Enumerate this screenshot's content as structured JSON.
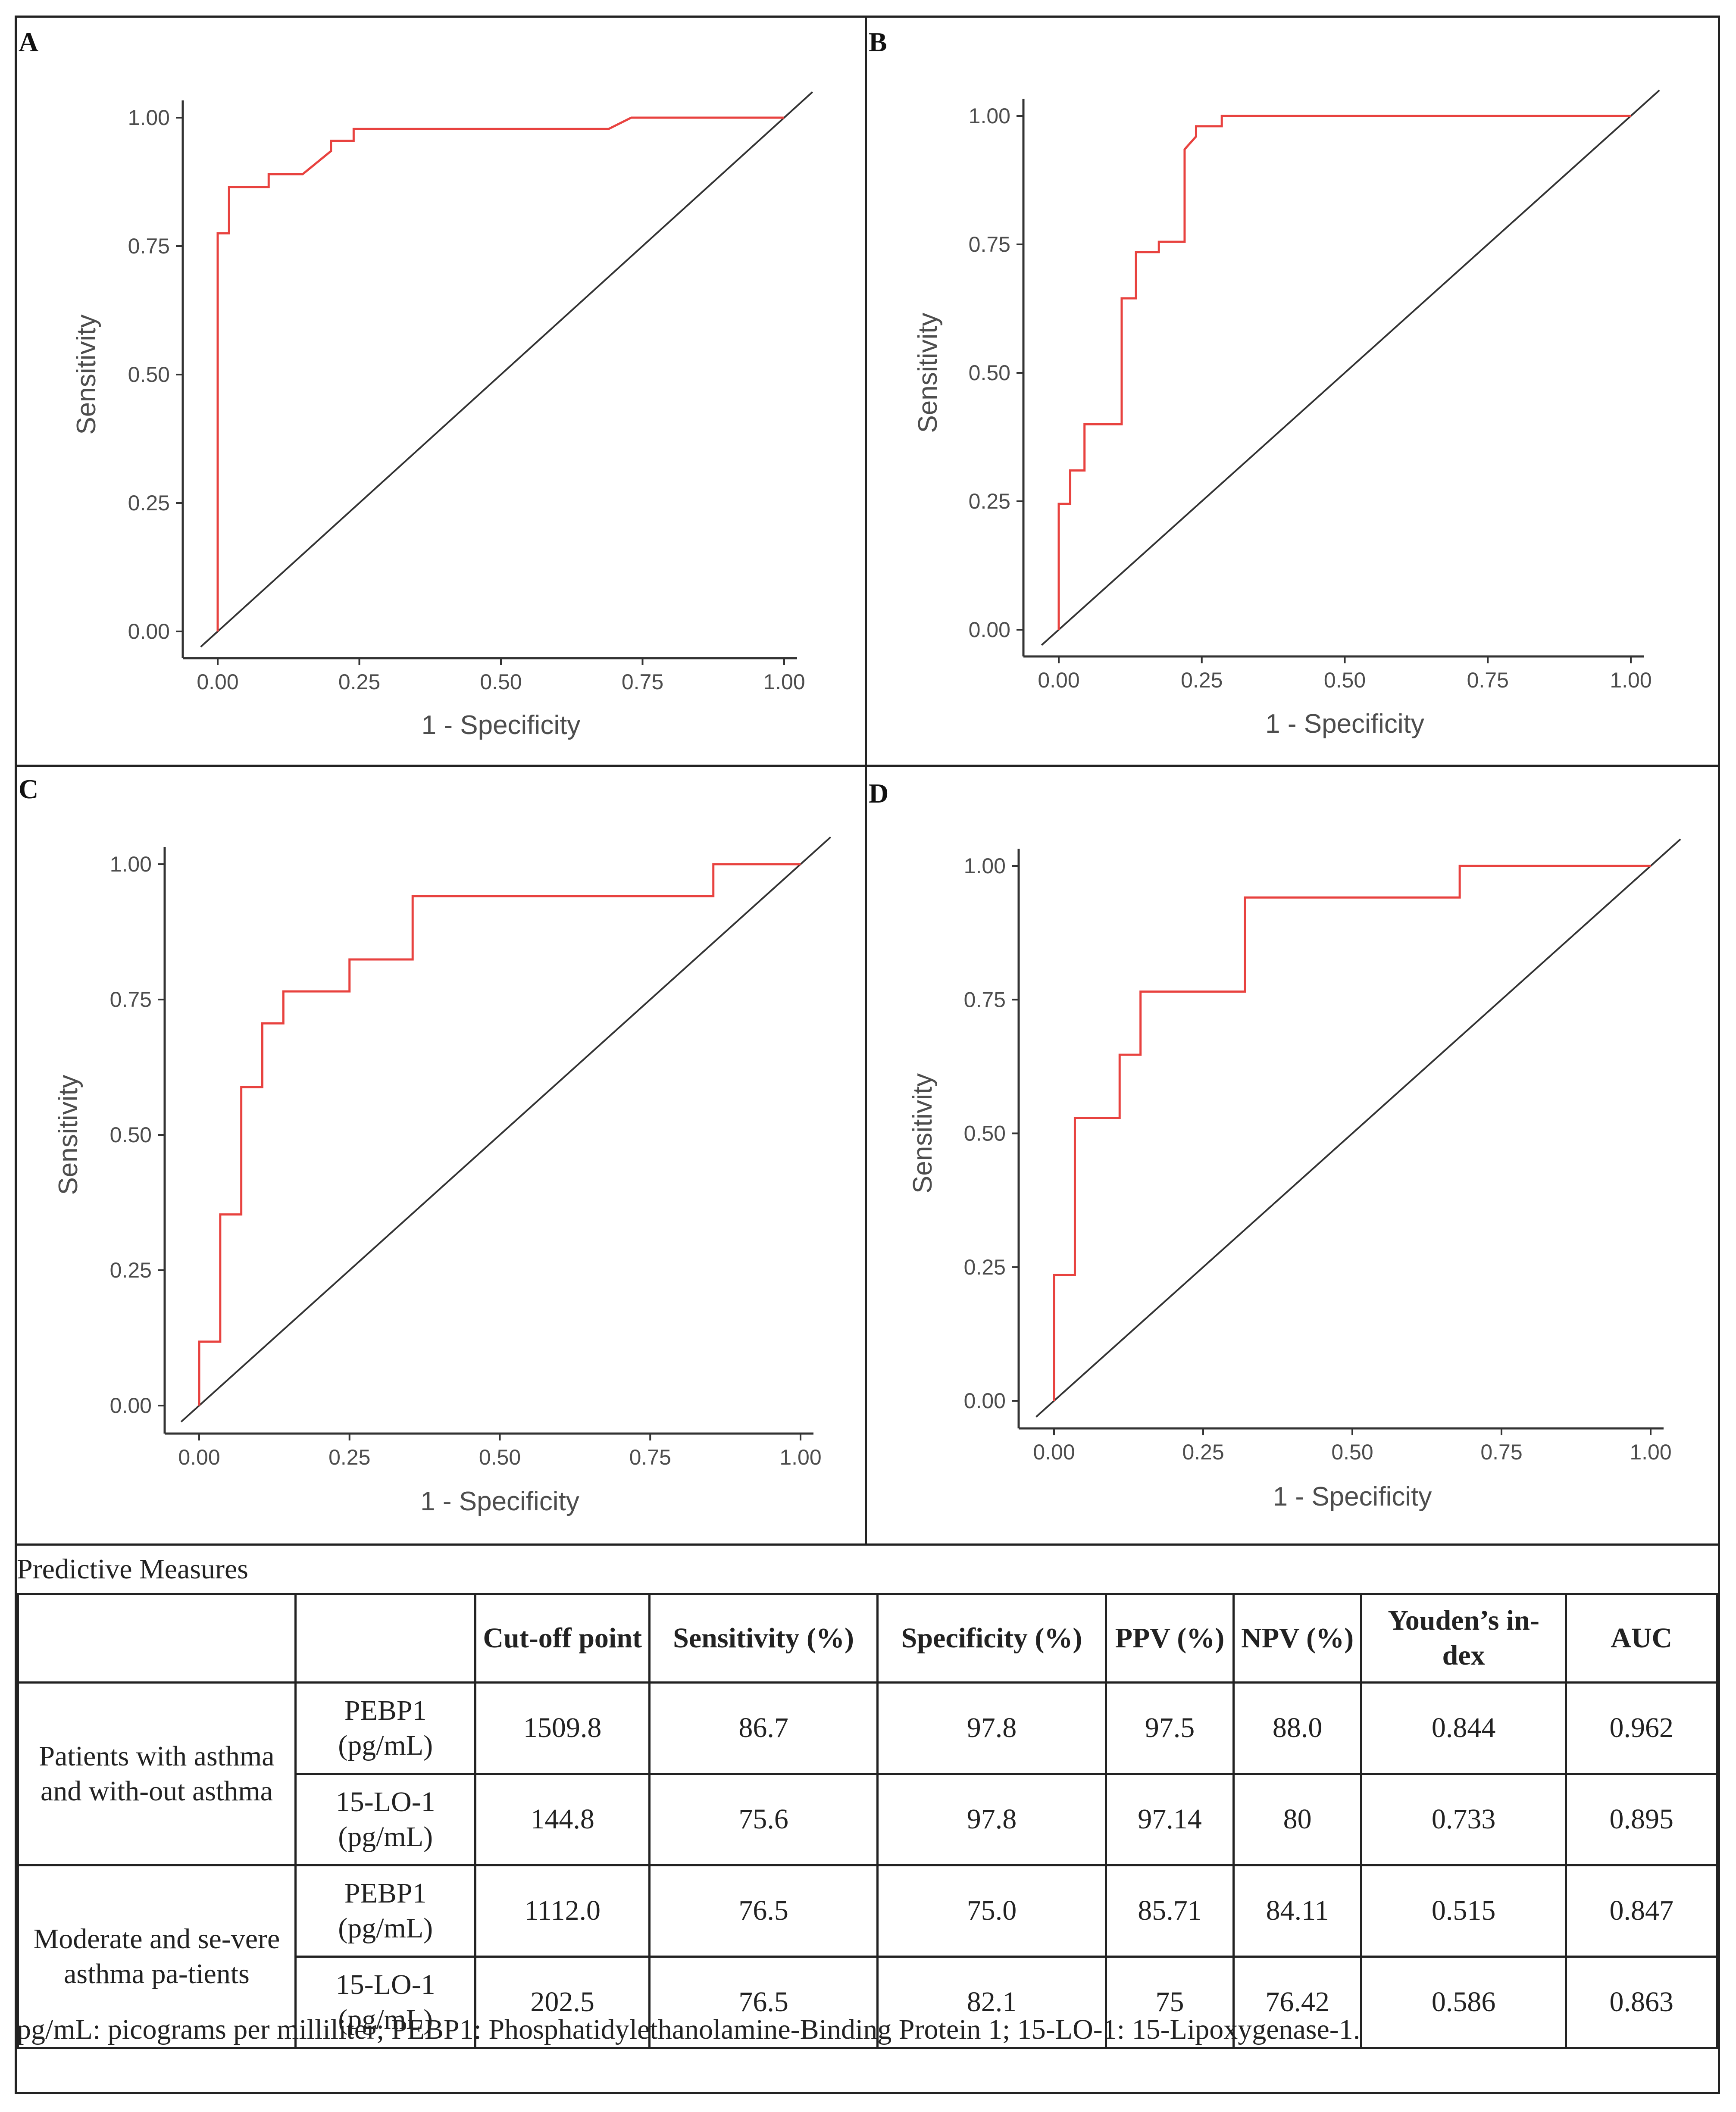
{
  "chart_data": [
    {
      "type": "line",
      "panel": "A",
      "xlabel": "1 - Specificity",
      "ylabel": "Sensitivity",
      "xlim": [
        0,
        1
      ],
      "ylim": [
        0,
        1
      ],
      "ticks": [
        "0.00",
        "0.25",
        "0.50",
        "0.75",
        "1.00"
      ],
      "series": [
        {
          "name": "ROC",
          "color": "#e8423f",
          "x": [
            0,
            0,
            0.02,
            0.02,
            0.09,
            0.09,
            0.15,
            0.2,
            0.2,
            0.24,
            0.24,
            0.69,
            0.73,
            1.0
          ],
          "y": [
            0,
            0.775,
            0.775,
            0.865,
            0.865,
            0.89,
            0.89,
            0.935,
            0.955,
            0.955,
            0.978,
            0.978,
            1.0,
            1.0
          ]
        },
        {
          "name": "Reference",
          "color": "#333333",
          "x": [
            0,
            1
          ],
          "y": [
            0,
            1
          ]
        }
      ]
    },
    {
      "type": "line",
      "panel": "B",
      "xlabel": "1 - Specificity",
      "ylabel": "Sensitivity",
      "xlim": [
        0,
        1
      ],
      "ylim": [
        0,
        1
      ],
      "ticks": [
        "0.00",
        "0.25",
        "0.50",
        "0.75",
        "1.00"
      ],
      "series": [
        {
          "name": "ROC",
          "color": "#e8423f",
          "x": [
            0,
            0,
            0.02,
            0.02,
            0.045,
            0.045,
            0.11,
            0.11,
            0.135,
            0.135,
            0.175,
            0.175,
            0.22,
            0.22,
            0.24,
            0.24,
            0.285,
            0.285,
            1.0
          ],
          "y": [
            0,
            0.245,
            0.245,
            0.31,
            0.31,
            0.4,
            0.4,
            0.645,
            0.645,
            0.735,
            0.735,
            0.755,
            0.755,
            0.935,
            0.96,
            0.98,
            0.98,
            1.0,
            1.0
          ]
        },
        {
          "name": "Reference",
          "color": "#333333",
          "x": [
            0,
            1
          ],
          "y": [
            0,
            1
          ]
        }
      ]
    },
    {
      "type": "line",
      "panel": "C",
      "xlabel": "1 - Specificity",
      "ylabel": "Sensitivity",
      "xlim": [
        0,
        1
      ],
      "ylim": [
        0,
        1
      ],
      "ticks": [
        "0.00",
        "0.25",
        "0.50",
        "0.75",
        "1.00"
      ],
      "series": [
        {
          "name": "ROC",
          "color": "#e8423f",
          "x": [
            0,
            0,
            0.035,
            0.035,
            0.07,
            0.07,
            0.105,
            0.105,
            0.14,
            0.14,
            0.25,
            0.25,
            0.355,
            0.355,
            0.855,
            0.855,
            1.0
          ],
          "y": [
            0,
            0.118,
            0.118,
            0.353,
            0.353,
            0.588,
            0.588,
            0.706,
            0.706,
            0.765,
            0.765,
            0.824,
            0.824,
            0.941,
            0.941,
            1.0,
            1.0
          ]
        },
        {
          "name": "Reference",
          "color": "#333333",
          "x": [
            0,
            1
          ],
          "y": [
            0,
            1
          ]
        }
      ]
    },
    {
      "type": "line",
      "panel": "D",
      "xlabel": "1 - Specificity",
      "ylabel": "Sensitivity",
      "xlim": [
        0,
        1
      ],
      "ylim": [
        0,
        1
      ],
      "ticks": [
        "0.00",
        "0.25",
        "0.50",
        "0.75",
        "1.00"
      ],
      "series": [
        {
          "name": "ROC",
          "color": "#e8423f",
          "x": [
            0,
            0,
            0.035,
            0.035,
            0.11,
            0.11,
            0.145,
            0.145,
            0.32,
            0.32,
            0.68,
            0.68,
            1.0
          ],
          "y": [
            0,
            0.235,
            0.235,
            0.529,
            0.529,
            0.647,
            0.647,
            0.765,
            0.765,
            0.941,
            0.941,
            1.0,
            1.0
          ]
        },
        {
          "name": "Reference",
          "color": "#333333",
          "x": [
            0,
            1
          ],
          "y": [
            0,
            1
          ]
        }
      ]
    }
  ],
  "table": {
    "caption": "Predictive Measures",
    "headers": [
      "",
      "",
      "Cut-off point",
      "Sensitivity (%)",
      "Specificity (%)",
      "PPV (%)",
      "NPV (%)",
      "Youden’s in-dex",
      "AUC"
    ],
    "groups": [
      {
        "label": "Patients with asthma and with-out asthma",
        "rows": [
          {
            "marker": "PEBP1 (pg/mL)",
            "cutoff": "1509.8",
            "sensitivity": "86.7",
            "specificity": "97.8",
            "ppv": "97.5",
            "npv": "88.0",
            "youden": "0.844",
            "auc": "0.962"
          },
          {
            "marker": "15-LO-1 (pg/mL)",
            "cutoff": "144.8",
            "sensitivity": "75.6",
            "specificity": "97.8",
            "ppv": "97.14",
            "npv": "80",
            "youden": "0.733",
            "auc": "0.895"
          }
        ]
      },
      {
        "label": "Moderate and se-vere asthma pa-tients",
        "rows": [
          {
            "marker": "PEBP1 (pg/mL)",
            "cutoff": "1112.0",
            "sensitivity": "76.5",
            "specificity": "75.0",
            "ppv": "85.71",
            "npv": "84.11",
            "youden": "0.515",
            "auc": "0.847"
          },
          {
            "marker": "15-LO-1 (pg/mL)",
            "cutoff": "202.5",
            "sensitivity": "76.5",
            "specificity": "82.1",
            "ppv": "75",
            "npv": "76.42",
            "youden": "0.586",
            "auc": "0.863"
          }
        ]
      }
    ],
    "footnote": "pg/mL: picograms per milliliter; PEBP1: Phosphatidylethanolamine-Binding Protein 1; 15-LO-1: 15-Lipoxygenase-1."
  }
}
